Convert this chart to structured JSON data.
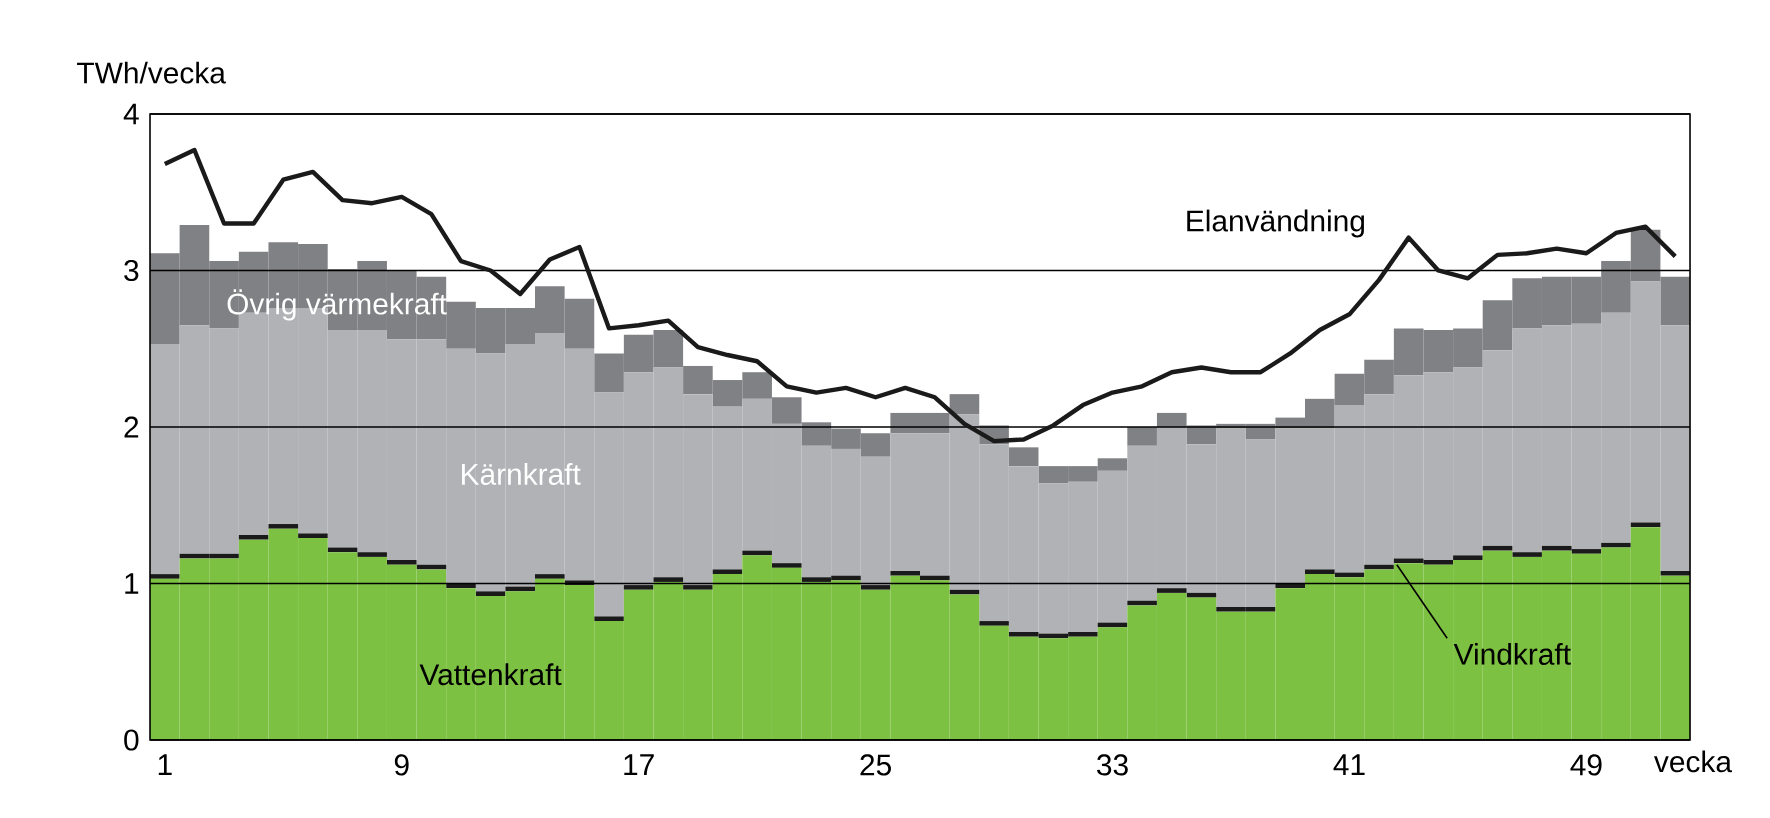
{
  "chart_data": {
    "type": "bar",
    "stacked": true,
    "ylabel": "TWh/vecka",
    "xlabel": "vecka",
    "x": [
      1,
      2,
      3,
      4,
      5,
      6,
      7,
      8,
      9,
      10,
      11,
      12,
      13,
      14,
      15,
      16,
      17,
      18,
      19,
      20,
      21,
      22,
      23,
      24,
      25,
      26,
      27,
      28,
      29,
      30,
      31,
      32,
      33,
      34,
      35,
      36,
      37,
      38,
      39,
      40,
      41,
      42,
      43,
      44,
      45,
      46,
      47,
      48,
      49,
      50,
      51,
      52
    ],
    "xlim": [
      0.5,
      52.5
    ],
    "xticks": [
      1,
      9,
      17,
      25,
      33,
      41,
      49
    ],
    "ylim": [
      0,
      4
    ],
    "yticks": [
      0,
      1,
      2,
      3,
      4
    ],
    "grid": "y",
    "series": [
      {
        "name": "Vattenkraft",
        "color": "#7dc142",
        "values": [
          1.03,
          1.16,
          1.16,
          1.28,
          1.35,
          1.29,
          1.2,
          1.17,
          1.12,
          1.09,
          0.97,
          0.92,
          0.95,
          1.03,
          0.99,
          0.76,
          0.96,
          1.01,
          0.96,
          1.06,
          1.18,
          1.1,
          1.01,
          1.02,
          0.96,
          1.05,
          1.02,
          0.93,
          0.73,
          0.66,
          0.65,
          0.66,
          0.72,
          0.86,
          0.94,
          0.91,
          0.82,
          0.82,
          0.97,
          1.06,
          1.04,
          1.09,
          1.13,
          1.12,
          1.15,
          1.21,
          1.17,
          1.21,
          1.19,
          1.23,
          1.36,
          1.05
        ]
      },
      {
        "name": "Vindkraft",
        "color": "#1a1a1a",
        "values": [
          0.03,
          0.03,
          0.03,
          0.03,
          0.03,
          0.03,
          0.03,
          0.03,
          0.03,
          0.03,
          0.03,
          0.03,
          0.03,
          0.03,
          0.03,
          0.03,
          0.03,
          0.03,
          0.03,
          0.03,
          0.03,
          0.03,
          0.03,
          0.03,
          0.03,
          0.03,
          0.03,
          0.03,
          0.03,
          0.03,
          0.03,
          0.03,
          0.03,
          0.03,
          0.03,
          0.03,
          0.03,
          0.03,
          0.03,
          0.03,
          0.03,
          0.03,
          0.03,
          0.03,
          0.03,
          0.03,
          0.03,
          0.03,
          0.03,
          0.03,
          0.03,
          0.03
        ]
      },
      {
        "name": "Kärnkraft",
        "color": "#b1b2b6",
        "values": [
          1.47,
          1.46,
          1.44,
          1.42,
          1.38,
          1.44,
          1.39,
          1.42,
          1.41,
          1.44,
          1.5,
          1.52,
          1.55,
          1.54,
          1.48,
          1.43,
          1.36,
          1.34,
          1.22,
          1.04,
          0.97,
          0.89,
          0.84,
          0.81,
          0.82,
          0.88,
          0.91,
          1.12,
          1.13,
          1.06,
          0.96,
          0.96,
          0.97,
          0.99,
          1.03,
          0.95,
          1.14,
          1.07,
          0.99,
          0.9,
          1.07,
          1.09,
          1.17,
          1.2,
          1.2,
          1.25,
          1.43,
          1.41,
          1.44,
          1.47,
          1.54,
          1.57
        ]
      },
      {
        "name": "Övrig värmekraft",
        "color": "#808184",
        "values": [
          0.58,
          0.64,
          0.43,
          0.39,
          0.42,
          0.41,
          0.39,
          0.44,
          0.44,
          0.4,
          0.3,
          0.29,
          0.23,
          0.3,
          0.32,
          0.25,
          0.24,
          0.24,
          0.18,
          0.17,
          0.17,
          0.17,
          0.15,
          0.13,
          0.15,
          0.13,
          0.13,
          0.13,
          0.12,
          0.12,
          0.11,
          0.1,
          0.08,
          0.12,
          0.09,
          0.12,
          0.03,
          0.1,
          0.07,
          0.19,
          0.2,
          0.22,
          0.3,
          0.27,
          0.25,
          0.32,
          0.32,
          0.31,
          0.3,
          0.33,
          0.33,
          0.31
        ]
      },
      {
        "name": "Elanvändning",
        "type": "line",
        "color": "#1a1a1a",
        "marker": "none",
        "line_style": "solid",
        "values": [
          3.68,
          3.77,
          3.3,
          3.3,
          3.58,
          3.63,
          3.45,
          3.43,
          3.47,
          3.36,
          3.06,
          3.0,
          2.85,
          3.07,
          3.15,
          2.63,
          2.65,
          2.68,
          2.51,
          2.46,
          2.42,
          2.26,
          2.22,
          2.25,
          2.19,
          2.25,
          2.19,
          2.02,
          1.91,
          1.92,
          2.01,
          2.14,
          2.22,
          2.26,
          2.35,
          2.38,
          2.35,
          2.35,
          2.47,
          2.62,
          2.72,
          2.94,
          3.21,
          3.0,
          2.95,
          3.1,
          3.11,
          3.14,
          3.11,
          3.24,
          3.28,
          3.09
        ]
      }
    ]
  }
}
